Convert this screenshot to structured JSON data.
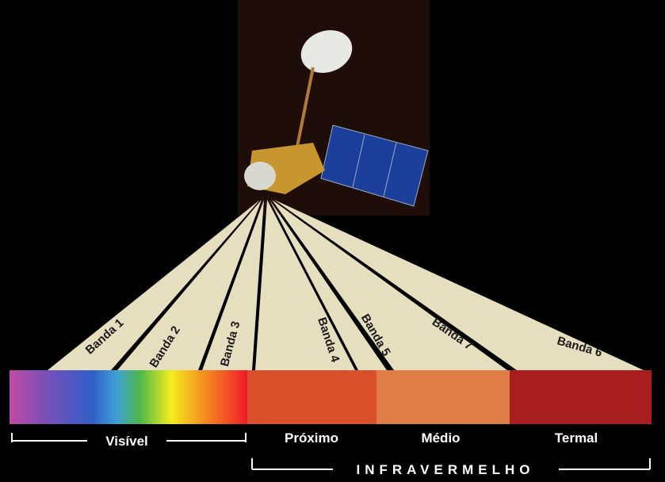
{
  "bands": [
    "Banda 1",
    "Banda 2",
    "Banda 3",
    "Banda 4",
    "Banda 5",
    "Banda 7",
    "Banda 6"
  ],
  "regions": {
    "visible": "Visível",
    "near": "Próximo",
    "mid": "Médio",
    "thermal": "Termal",
    "infrared": "INFRAVERMELHO"
  }
}
